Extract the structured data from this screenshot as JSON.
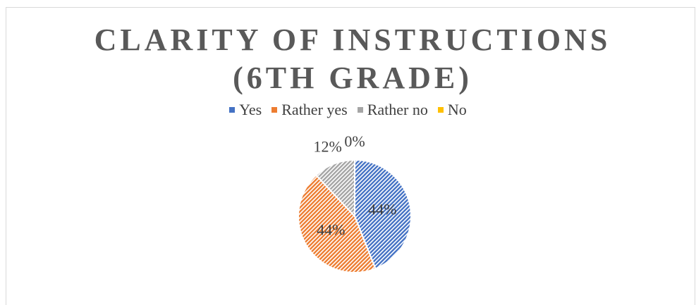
{
  "chart_data": {
    "type": "pie",
    "title": "CLARITY OF INSTRUCTIONS (6TH GRADE)",
    "categories": [
      "Yes",
      "Rather yes",
      "Rather no",
      "No"
    ],
    "values": [
      44,
      44,
      12,
      0
    ],
    "value_labels": [
      "44%",
      "44%",
      "12%",
      "0%"
    ],
    "colors": [
      "#4472c4",
      "#ed7d31",
      "#a5a5a5",
      "#ffc000"
    ]
  }
}
